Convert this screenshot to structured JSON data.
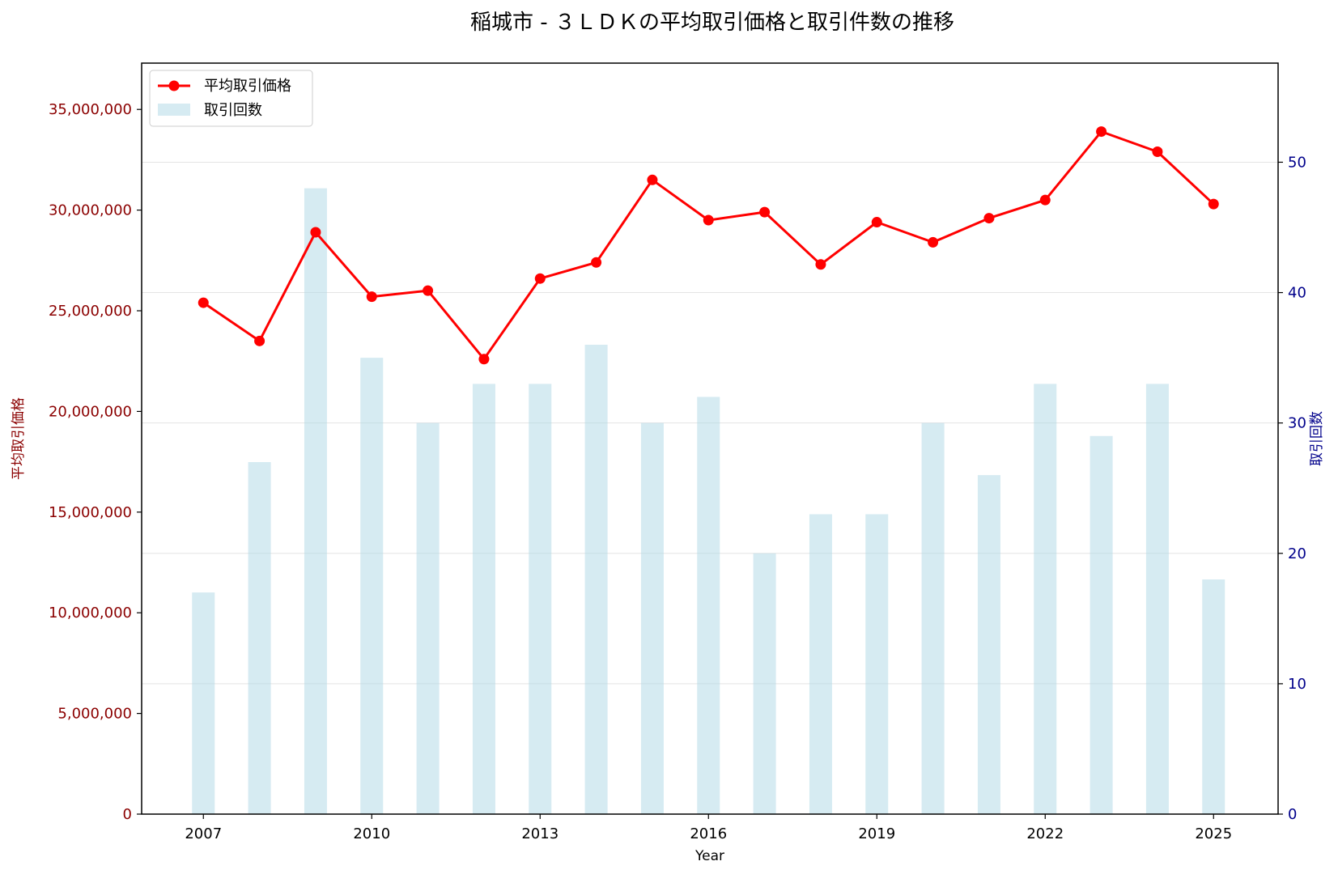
{
  "chart_data": {
    "type": "bar+line",
    "title": "稲城市 - ３ＬＤＫの平均取引価格と取引件数の推移",
    "xlabel": "Year",
    "ylabel_left": "平均取引価格",
    "ylabel_right": "取引回数",
    "x": [
      2007,
      2008,
      2009,
      2010,
      2011,
      2012,
      2013,
      2014,
      2015,
      2016,
      2017,
      2018,
      2019,
      2020,
      2021,
      2022,
      2023,
      2024,
      2025
    ],
    "x_ticks": [
      "2007",
      "2010",
      "2013",
      "2016",
      "2019",
      "2022",
      "2025"
    ],
    "x_range": [
      2005.9,
      2026.15
    ],
    "ylim_left": [
      0,
      37300000
    ],
    "ylim_right": [
      0,
      57.6
    ],
    "left_ticks": [
      "0",
      "5,000,000",
      "10,000,000",
      "15,000,000",
      "20,000,000",
      "25,000,000",
      "30,000,000",
      "35,000,000"
    ],
    "right_ticks": [
      "0",
      "10",
      "20",
      "30",
      "40",
      "50"
    ],
    "legend_position": "upper left",
    "grid": "horizontal (right axis)",
    "series": [
      {
        "name": "平均取引価格",
        "type": "line",
        "axis": "left",
        "color": "#ff0000",
        "values": [
          25400000,
          23500000,
          28900000,
          25700000,
          26000000,
          22600000,
          26600000,
          27400000,
          31500000,
          29500000,
          29900000,
          27300000,
          29400000,
          28400000,
          29600000,
          30500000,
          33900000,
          32900000,
          30300000
        ]
      },
      {
        "name": "取引回数",
        "type": "bar",
        "axis": "right",
        "color": "#add8e6",
        "values": [
          17,
          27,
          48,
          35,
          30,
          33,
          33,
          36,
          30,
          32,
          20,
          23,
          23,
          30,
          26,
          33,
          29,
          33,
          18
        ]
      }
    ]
  }
}
